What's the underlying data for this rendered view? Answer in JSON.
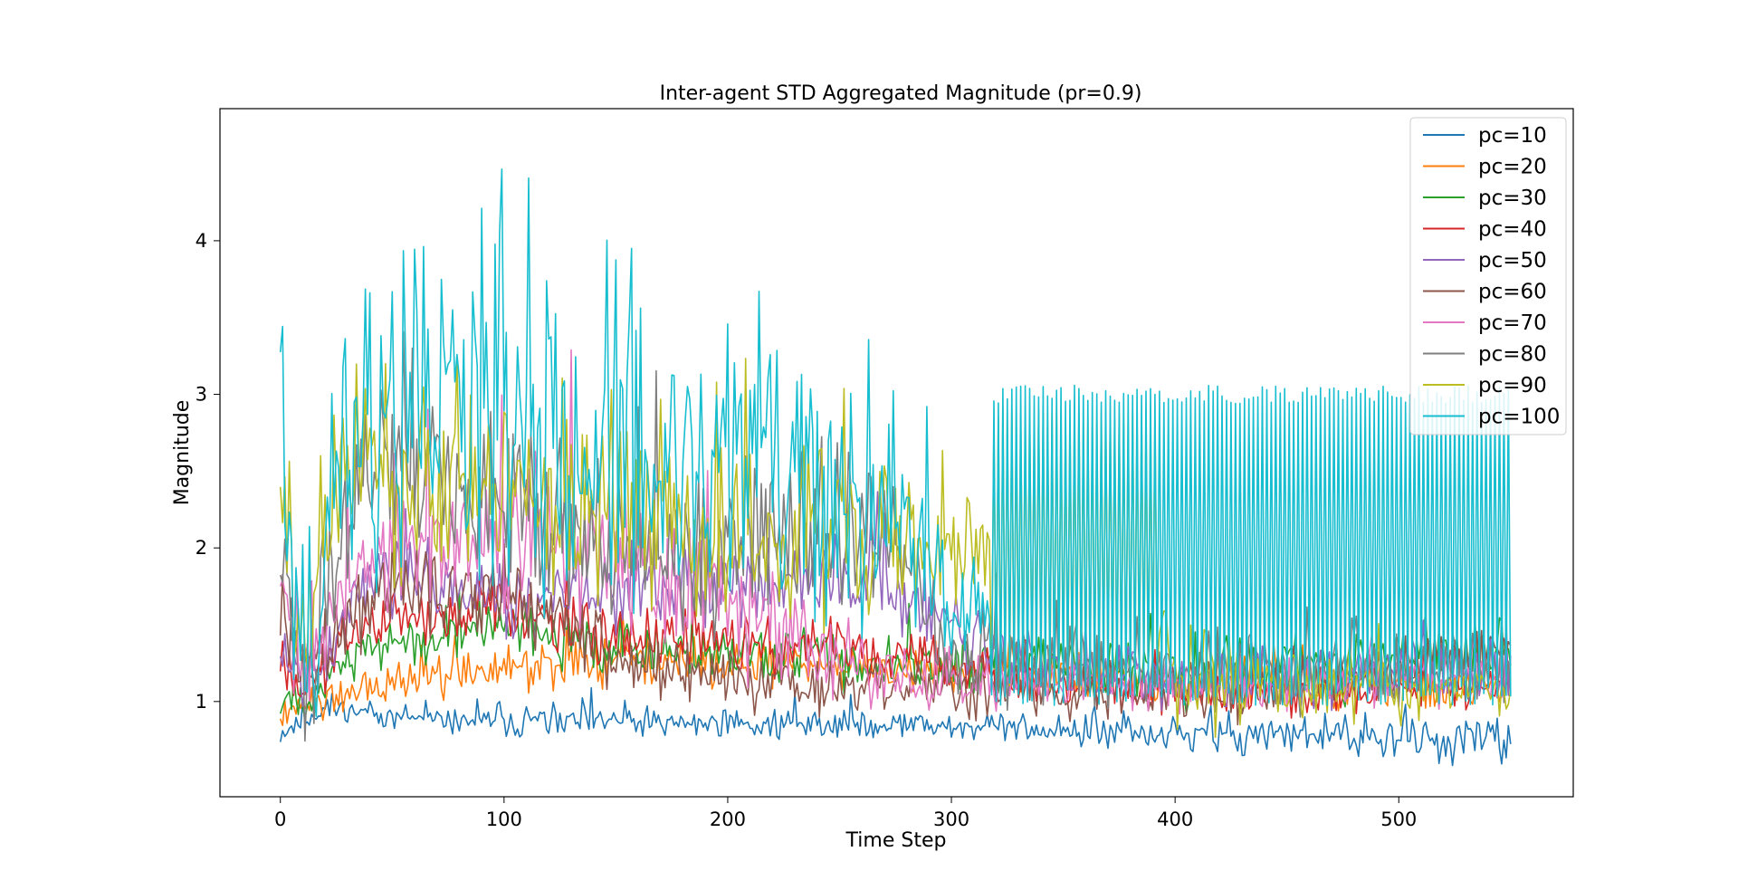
{
  "chart_data": {
    "type": "line",
    "title": "Inter-agent STD Aggregated Magnitude (pr=0.9)",
    "xlabel": "Time Step",
    "ylabel": "Magnitude",
    "xlim": [
      -27,
      578
    ],
    "ylim": [
      0.38,
      4.86
    ],
    "xticks": [
      0,
      100,
      200,
      300,
      400,
      500
    ],
    "yticks": [
      1,
      2,
      3,
      4
    ],
    "grid": false,
    "legend_position": "top-right",
    "n_points": 551,
    "series": [
      {
        "name": "pc=10",
        "color": "#1f77b4",
        "base": [
          [
            0,
            0.79
          ],
          [
            20,
            0.95
          ],
          [
            60,
            0.88
          ],
          [
            120,
            0.86
          ],
          [
            200,
            0.86
          ],
          [
            300,
            0.84
          ],
          [
            400,
            0.78
          ],
          [
            500,
            0.76
          ],
          [
            550,
            0.72
          ]
        ],
        "noise": [
          [
            0,
            0.06
          ],
          [
            150,
            0.07
          ],
          [
            300,
            0.07
          ],
          [
            400,
            0.1
          ],
          [
            550,
            0.1
          ]
        ],
        "period": 0,
        "seed": 11
      },
      {
        "name": "pc=20",
        "color": "#ff7f0e",
        "base": [
          [
            0,
            0.9
          ],
          [
            15,
            1.0
          ],
          [
            50,
            1.15
          ],
          [
            100,
            1.2
          ],
          [
            150,
            1.25
          ],
          [
            200,
            1.25
          ],
          [
            300,
            1.2
          ],
          [
            400,
            1.12
          ],
          [
            550,
            1.1
          ]
        ],
        "noise": [
          [
            0,
            0.08
          ],
          [
            100,
            0.12
          ],
          [
            300,
            0.1
          ],
          [
            550,
            0.1
          ]
        ],
        "period": 0,
        "seed": 22
      },
      {
        "name": "pc=30",
        "color": "#2ca02c",
        "base": [
          [
            0,
            1.0
          ],
          [
            10,
            1.05
          ],
          [
            40,
            1.35
          ],
          [
            90,
            1.45
          ],
          [
            150,
            1.35
          ],
          [
            200,
            1.3
          ],
          [
            300,
            1.25
          ],
          [
            400,
            1.2
          ],
          [
            550,
            1.3
          ]
        ],
        "noise": [
          [
            0,
            0.1
          ],
          [
            90,
            0.15
          ],
          [
            200,
            0.12
          ],
          [
            400,
            0.15
          ],
          [
            550,
            0.15
          ]
        ],
        "period": 0,
        "seed": 33
      },
      {
        "name": "pc=40",
        "color": "#d62728",
        "base": [
          [
            0,
            1.2
          ],
          [
            10,
            1.1
          ],
          [
            40,
            1.5
          ],
          [
            100,
            1.6
          ],
          [
            150,
            1.4
          ],
          [
            250,
            1.35
          ],
          [
            350,
            1.1
          ],
          [
            450,
            1.05
          ],
          [
            550,
            1.1
          ]
        ],
        "noise": [
          [
            0,
            0.1
          ],
          [
            100,
            0.15
          ],
          [
            250,
            0.12
          ],
          [
            550,
            0.08
          ]
        ],
        "period": 0,
        "seed": 44
      },
      {
        "name": "pc=50",
        "color": "#9467bd",
        "base": [
          [
            0,
            1.4
          ],
          [
            10,
            1.1
          ],
          [
            40,
            1.8
          ],
          [
            100,
            1.7
          ],
          [
            200,
            1.75
          ],
          [
            260,
            1.8
          ],
          [
            320,
            1.3
          ],
          [
            400,
            1.1
          ],
          [
            550,
            1.2
          ]
        ],
        "noise": [
          [
            0,
            0.15
          ],
          [
            100,
            0.2
          ],
          [
            260,
            0.2
          ],
          [
            350,
            0.12
          ],
          [
            550,
            0.15
          ]
        ],
        "period": 0,
        "seed": 55
      },
      {
        "name": "pc=60",
        "color": "#8c564b",
        "base": [
          [
            0,
            1.7
          ],
          [
            10,
            1.2
          ],
          [
            50,
            1.8
          ],
          [
            120,
            1.6
          ],
          [
            160,
            1.2
          ],
          [
            250,
            1.1
          ],
          [
            350,
            1.05
          ],
          [
            450,
            1.1
          ],
          [
            550,
            1.35
          ]
        ],
        "noise": [
          [
            0,
            0.2
          ],
          [
            100,
            0.2
          ],
          [
            160,
            0.12
          ],
          [
            550,
            0.12
          ]
        ],
        "period": 0,
        "seed": 66
      },
      {
        "name": "pc=70",
        "color": "#e377c2",
        "base": [
          [
            0,
            1.9
          ],
          [
            10,
            1.1
          ],
          [
            40,
            2.0
          ],
          [
            120,
            2.0
          ],
          [
            200,
            1.6
          ],
          [
            260,
            1.2
          ],
          [
            350,
            1.1
          ],
          [
            550,
            1.15
          ]
        ],
        "noise": [
          [
            0,
            0.25
          ],
          [
            120,
            0.35
          ],
          [
            200,
            0.3
          ],
          [
            270,
            0.15
          ],
          [
            550,
            0.1
          ]
        ],
        "period": 0,
        "seed": 77
      },
      {
        "name": "pc=80",
        "color": "#7f7f7f",
        "base": [
          [
            0,
            2.2
          ],
          [
            10,
            1.2
          ],
          [
            40,
            2.5
          ],
          [
            120,
            2.1
          ],
          [
            200,
            2.0
          ],
          [
            265,
            2.1
          ],
          [
            300,
            1.3
          ],
          [
            360,
            1.2
          ],
          [
            550,
            1.2
          ]
        ],
        "noise": [
          [
            0,
            0.3
          ],
          [
            120,
            0.4
          ],
          [
            265,
            0.35
          ],
          [
            300,
            0.2
          ],
          [
            550,
            0.15
          ]
        ],
        "period": 0,
        "seed": 88
      },
      {
        "name": "pc=90",
        "color": "#bcbd22",
        "base": [
          [
            0,
            2.6
          ],
          [
            8,
            1.25
          ],
          [
            30,
            2.6
          ],
          [
            100,
            2.4
          ],
          [
            200,
            2.1
          ],
          [
            270,
            2.0
          ],
          [
            390,
            1.8
          ],
          [
            400,
            1.15
          ],
          [
            550,
            1.05
          ]
        ],
        "noise": [
          [
            0,
            0.4
          ],
          [
            100,
            0.5
          ],
          [
            270,
            0.4
          ],
          [
            300,
            0.3
          ],
          [
            550,
            0.1
          ]
        ],
        "period": 2,
        "low": 1.15,
        "amp": 1.7,
        "pstart": 318,
        "pend": 392,
        "seed": 99
      },
      {
        "name": "pc=100",
        "color": "#17becf",
        "base": [
          [
            0,
            3.0
          ],
          [
            6,
            1.4
          ],
          [
            15,
            1.35
          ],
          [
            25,
            2.8
          ],
          [
            60,
            3.0
          ],
          [
            150,
            2.7
          ],
          [
            250,
            2.5
          ],
          [
            300,
            1.8
          ],
          [
            318,
            1.6
          ],
          [
            550,
            1.6
          ]
        ],
        "noise": [
          [
            0,
            0.5
          ],
          [
            60,
            0.8
          ],
          [
            150,
            0.7
          ],
          [
            250,
            0.6
          ],
          [
            300,
            0.5
          ],
          [
            318,
            0.2
          ],
          [
            550,
            0.2
          ]
        ],
        "period": 2,
        "low": 1.05,
        "amp": 1.95,
        "pstart": 318,
        "pend": 550,
        "seed": 1010
      }
    ]
  }
}
